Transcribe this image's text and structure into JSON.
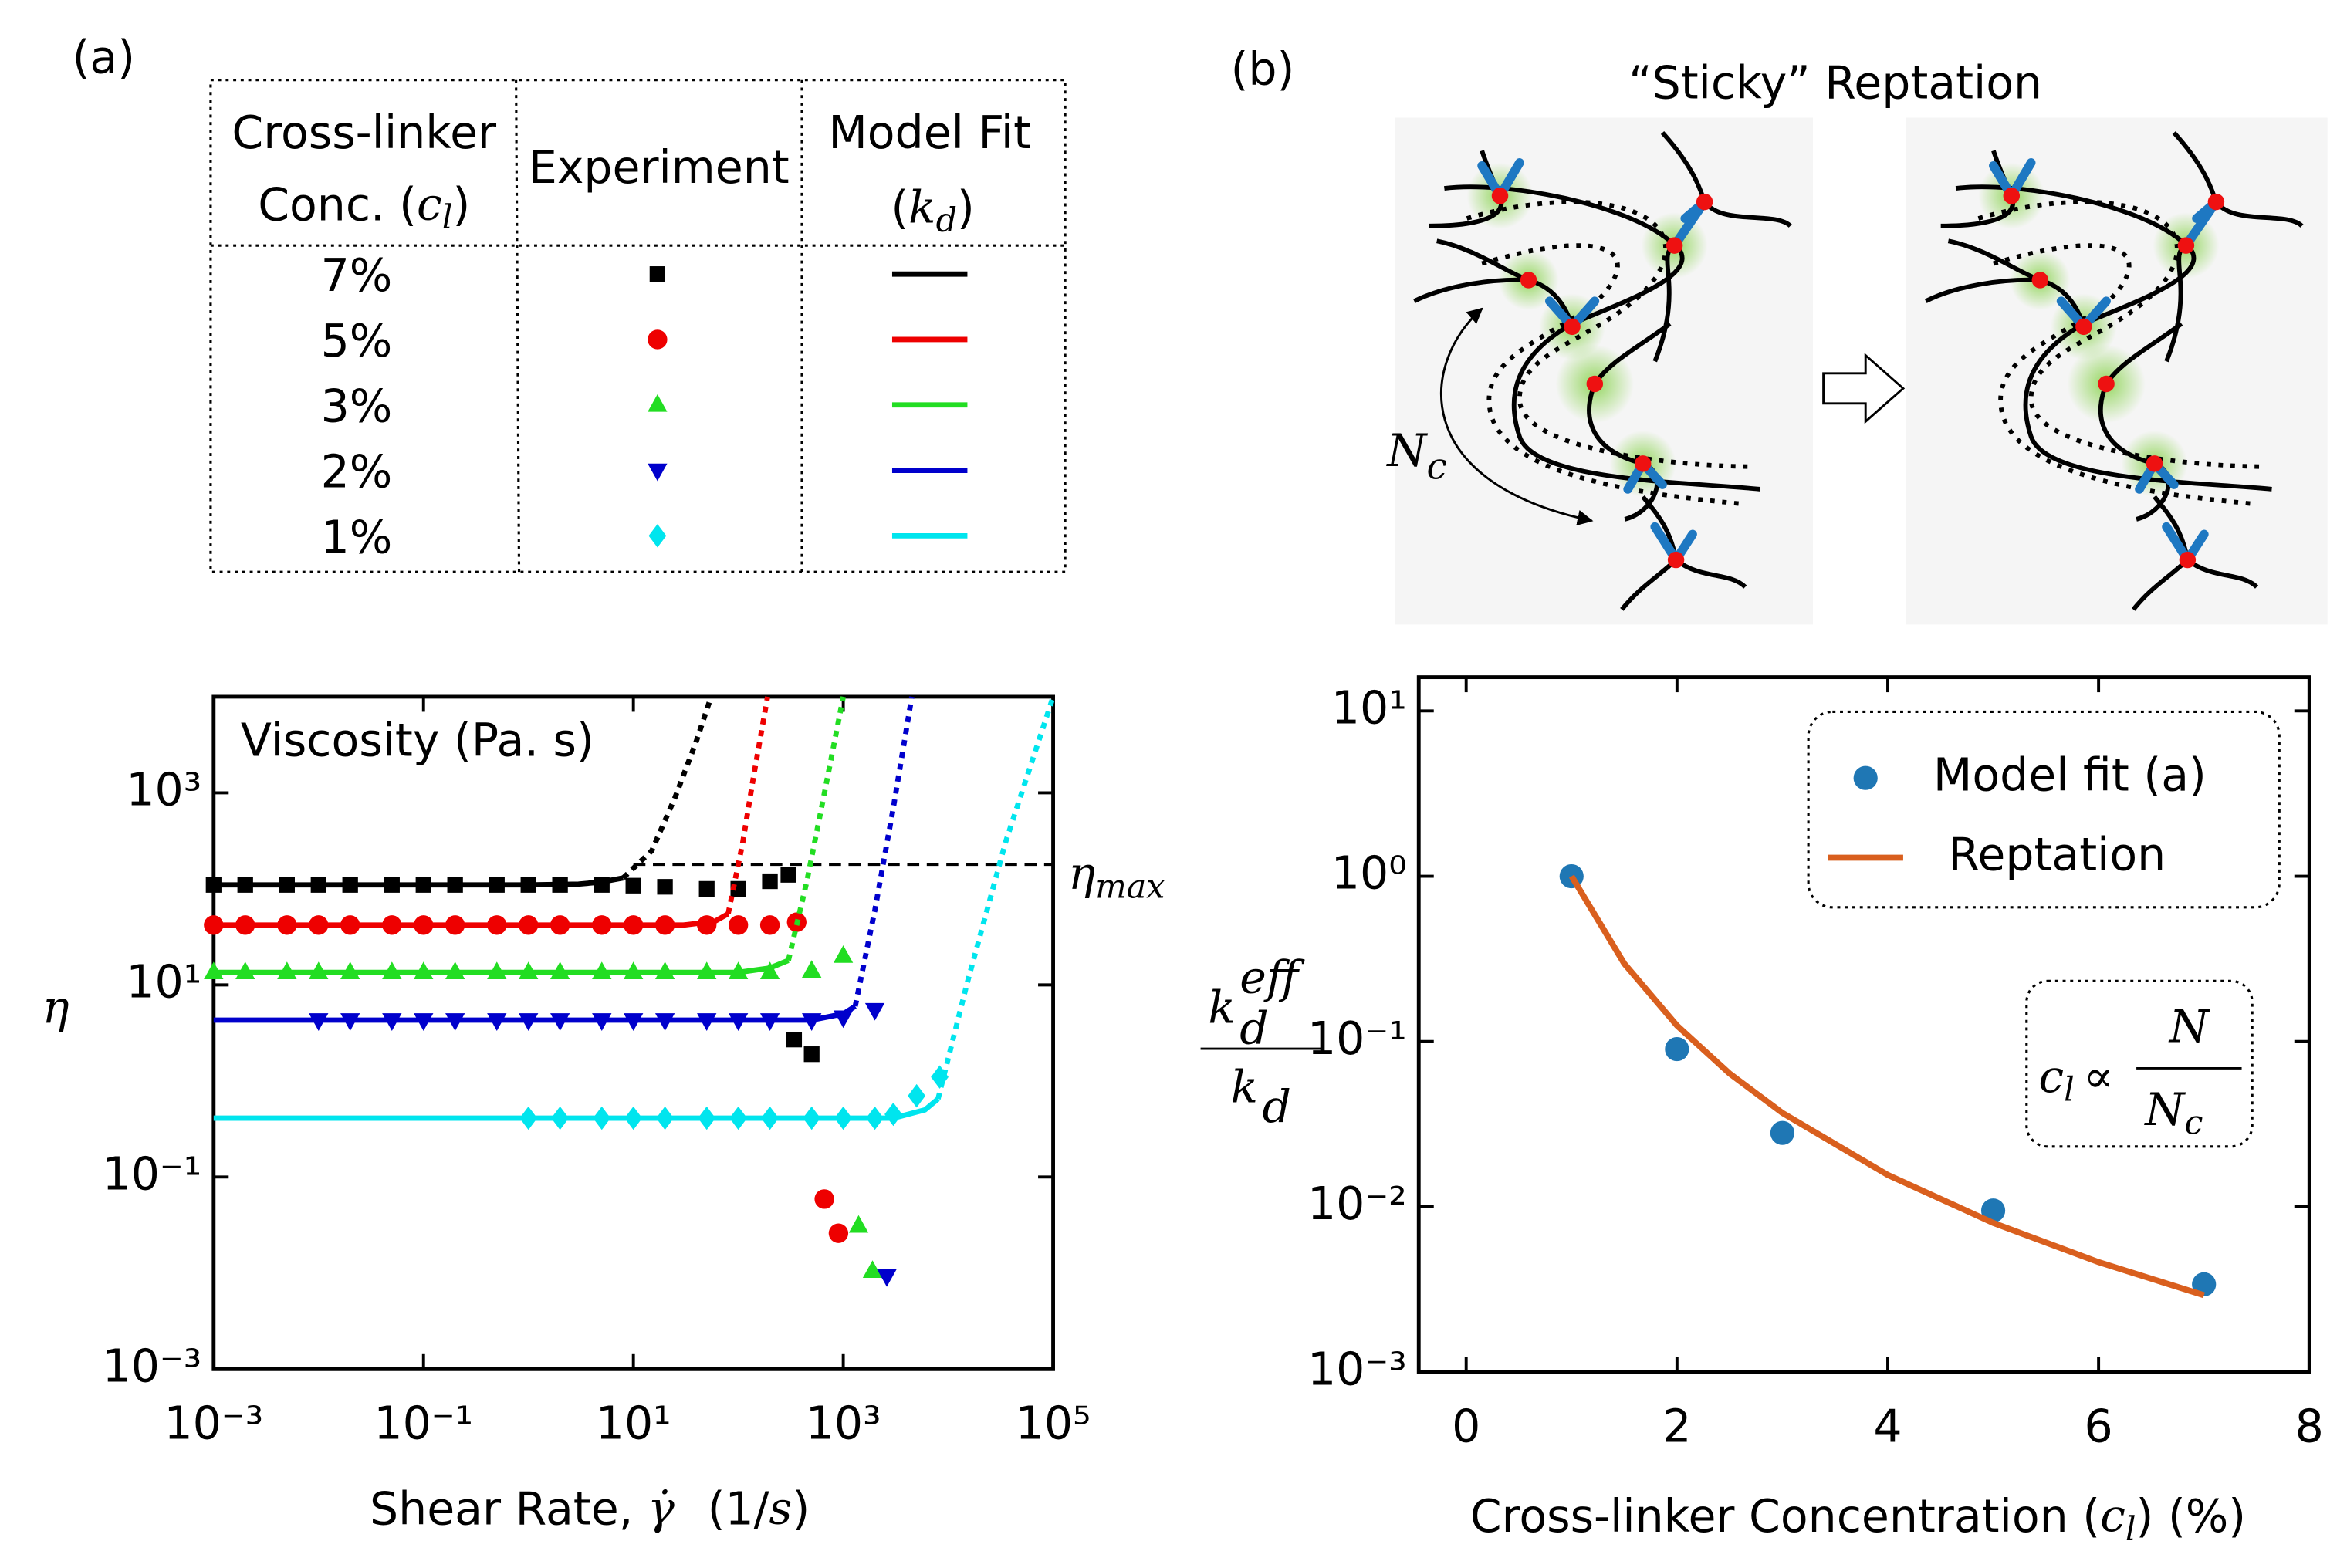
{
  "panel_labels": [
    "(a)",
    "(b)"
  ],
  "table": {
    "headers": [
      [
        "Cross-linker",
        "Conc. (",
        "c",
        "l",
        ")"
      ],
      [
        "Experiment"
      ],
      [
        "Model Fit",
        "(",
        "k",
        "d",
        ")"
      ]
    ]
  },
  "diagram": {
    "title": "“Sticky” Reptation",
    "tube_label": [
      "N",
      "c"
    ]
  },
  "chart_data": [
    {
      "type": "scatter",
      "xscale": "log",
      "yscale": "log",
      "annotation": "Viscosity (Pa. s)",
      "ylabel": "η",
      "xlabel": [
        "Shear Rate, ",
        "γ̇",
        "(1/",
        "s",
        ")"
      ],
      "xlim": [
        0.001,
        100000
      ],
      "xticks": [
        {
          "value": 0.001,
          "label": "10⁻³"
        },
        {
          "value": 0.1,
          "label": "10⁻¹"
        },
        {
          "value": 10,
          "label": "10¹"
        },
        {
          "value": 1000,
          "label": "10³"
        },
        {
          "value": 100000,
          "label": "10⁵"
        }
      ],
      "ylim": [
        0.001,
        10000
      ],
      "yticks": [
        {
          "value": 0.001,
          "label": "10⁻³"
        },
        {
          "value": 0.1,
          "label": "10⁻¹"
        },
        {
          "value": 10,
          "label": "10¹"
        },
        {
          "value": 1000,
          "label": "10³"
        }
      ],
      "hline": {
        "value": 180,
        "from": 10,
        "label": "η",
        "label_sub": "max"
      },
      "series": [
        {
          "name": "7%",
          "color": "#000000",
          "marker": "square",
          "x": [
            0.001,
            0.002,
            0.005,
            0.01,
            0.02,
            0.05,
            0.1,
            0.2,
            0.5,
            1,
            2,
            5,
            10,
            20,
            50,
            100,
            200,
            300,
            340,
            500
          ],
          "values": [
            110,
            110,
            110,
            110,
            110,
            110,
            110,
            110,
            110,
            110,
            110,
            110,
            108,
            105,
            100,
            100,
            120,
            140,
            2.7,
            1.9
          ],
          "fit_x": [
            0.001,
            1,
            3,
            5,
            8
          ],
          "fit_values": [
            110,
            110,
            112,
            118,
            130
          ],
          "rise_x": [
            8,
            15,
            25,
            40,
            55
          ],
          "rise_values": [
            130,
            250,
            900,
            3500,
            10000
          ]
        },
        {
          "name": "5%",
          "color": "#ee0000",
          "marker": "circle",
          "x": [
            0.001,
            0.002,
            0.005,
            0.01,
            0.02,
            0.05,
            0.1,
            0.2,
            0.5,
            1,
            2,
            5,
            10,
            20,
            50,
            100,
            200,
            360,
            660,
            900
          ],
          "values": [
            42,
            42,
            42,
            42,
            42,
            42,
            42,
            42,
            42,
            42,
            42,
            42,
            42,
            42,
            42,
            42,
            42,
            45,
            0.059,
            0.026
          ],
          "fit_x": [
            0.001,
            30,
            60,
            80
          ],
          "fit_values": [
            42,
            42,
            46,
            55
          ],
          "rise_x": [
            80,
            110,
            140,
            190
          ],
          "rise_values": [
            55,
            300,
            1500,
            10000
          ]
        },
        {
          "name": "3%",
          "color": "#22dd22",
          "marker": "triangle-up",
          "x": [
            0.001,
            0.002,
            0.005,
            0.01,
            0.02,
            0.05,
            0.1,
            0.2,
            0.5,
            1,
            2,
            5,
            10,
            20,
            50,
            100,
            200,
            500,
            1000,
            1400,
            1900
          ],
          "values": [
            13.5,
            13.5,
            13.5,
            13.5,
            13.5,
            13.5,
            13.5,
            13.5,
            13.5,
            13.5,
            13.5,
            13.5,
            13.5,
            13.5,
            13.5,
            13.5,
            13.5,
            14,
            20,
            0.031,
            0.0105
          ],
          "fit_x": [
            0.001,
            100,
            200,
            300
          ],
          "fit_values": [
            13.5,
            13.5,
            15,
            18
          ],
          "rise_x": [
            300,
            450,
            650,
            1000
          ],
          "rise_values": [
            18,
            120,
            900,
            10000
          ]
        },
        {
          "name": "2%",
          "color": "#0000cc",
          "marker": "triangle-down",
          "x": [
            0.01,
            0.02,
            0.05,
            0.1,
            0.2,
            0.5,
            1,
            2,
            5,
            10,
            20,
            50,
            100,
            200,
            500,
            1000,
            2000,
            2600
          ],
          "values": [
            4.3,
            4.3,
            4.3,
            4.3,
            4.3,
            4.3,
            4.3,
            4.3,
            4.3,
            4.3,
            4.3,
            4.3,
            4.3,
            4.3,
            4.3,
            4.6,
            5.5,
            0.0093
          ],
          "fit_x": [
            0.001,
            500,
            1000,
            1300
          ],
          "fit_values": [
            4.3,
            4.3,
            5,
            6
          ],
          "rise_x": [
            1300,
            2000,
            3000,
            4500
          ],
          "rise_values": [
            6,
            60,
            700,
            10000
          ]
        },
        {
          "name": "1%",
          "color": "#00e5ee",
          "marker": "diamond",
          "x": [
            1,
            2,
            5,
            10,
            20,
            50,
            100,
            200,
            500,
            1000,
            2000,
            3000,
            5000,
            8300
          ],
          "values": [
            0.41,
            0.41,
            0.41,
            0.41,
            0.41,
            0.41,
            0.41,
            0.41,
            0.41,
            0.41,
            0.41,
            0.45,
            0.7,
            1.1
          ],
          "fit_x": [
            0.001,
            3000,
            6000,
            8000
          ],
          "fit_values": [
            0.41,
            0.41,
            0.5,
            0.65
          ],
          "rise_x": [
            8000,
            15000,
            35000,
            100000
          ],
          "rise_values": [
            0.65,
            10,
            300,
            10000
          ]
        }
      ]
    },
    {
      "type": "scatter",
      "xscale": "linear",
      "yscale": "log",
      "xlabel": [
        "Cross-linker Concentration (",
        "c",
        "l",
        ") (%)"
      ],
      "ylabel": {
        "numerator": [
          "k",
          "d",
          "eff"
        ],
        "denominator": [
          "k",
          "d"
        ]
      },
      "formula": [
        "c",
        "l",
        "∝",
        "N",
        "N",
        "c"
      ],
      "xlim": [
        -0.45,
        8
      ],
      "xticks": [
        0,
        2,
        4,
        6,
        8
      ],
      "ylim": [
        0.001,
        16
      ],
      "yticks": [
        {
          "value": 0.001,
          "label": "10⁻³"
        },
        {
          "value": 0.01,
          "label": "10⁻²"
        },
        {
          "value": 0.1,
          "label": "10⁻¹"
        },
        {
          "value": 1,
          "label": "10⁰"
        },
        {
          "value": 10,
          "label": "10¹"
        }
      ],
      "legend": "upper right",
      "series": [
        {
          "name": "Model fit (a)",
          "color": "#1f77b4",
          "mode": "markers",
          "marker": "circle",
          "x": [
            1,
            2,
            3,
            5,
            7
          ],
          "values": [
            1.0,
            0.09,
            0.028,
            0.0095,
            0.0034
          ]
        },
        {
          "name": "Reptation",
          "color": "#d95f1e",
          "mode": "line",
          "x": [
            1,
            1.5,
            2,
            2.5,
            3,
            4,
            5,
            6,
            7
          ],
          "values": [
            1,
            0.296,
            0.125,
            0.064,
            0.037,
            0.0156,
            0.008,
            0.00463,
            0.00292
          ]
        }
      ]
    }
  ]
}
